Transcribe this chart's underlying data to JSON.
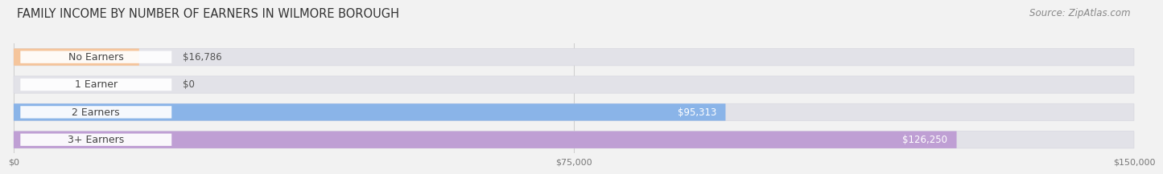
{
  "title": "FAMILY INCOME BY NUMBER OF EARNERS IN WILMORE BOROUGH",
  "source": "Source: ZipAtlas.com",
  "categories": [
    "No Earners",
    "1 Earner",
    "2 Earners",
    "3+ Earners"
  ],
  "values": [
    16786,
    0,
    95313,
    126250
  ],
  "bar_colors": [
    "#f5c59c",
    "#f0a8a8",
    "#8ab4e8",
    "#bf9fd4"
  ],
  "label_colors": [
    "#555555",
    "#555555",
    "#ffffff",
    "#ffffff"
  ],
  "x_max": 150000,
  "x_ticks": [
    0,
    75000,
    150000
  ],
  "x_tick_labels": [
    "$0",
    "$75,000",
    "$150,000"
  ],
  "value_labels": [
    "$16,786",
    "$0",
    "$95,313",
    "$126,250"
  ],
  "value_inside": [
    false,
    false,
    true,
    true
  ],
  "bg_color": "#f2f2f2",
  "bar_bg_color": "#e2e2e8",
  "title_fontsize": 10.5,
  "source_fontsize": 8.5,
  "label_fontsize": 9,
  "value_fontsize": 8.5
}
